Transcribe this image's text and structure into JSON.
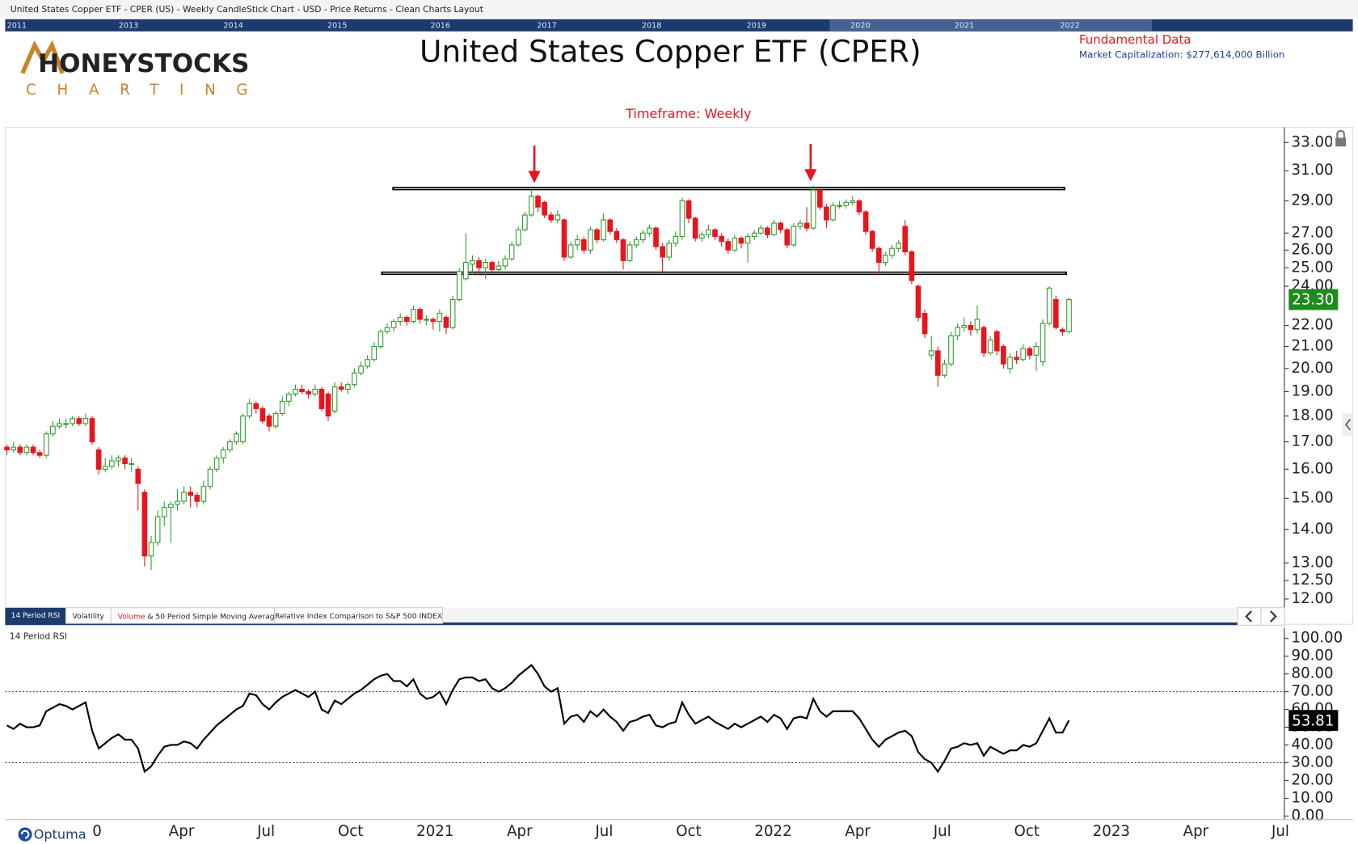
{
  "header": {
    "caption": "United States Copper ETF - CPER (US) - Weekly CandleStick Chart - USD - Price Returns - Clean Charts Layout",
    "years": [
      "2011",
      "2013",
      "2014",
      "2015",
      "2016",
      "2017",
      "2018",
      "2019",
      "2020",
      "2021",
      "2022"
    ]
  },
  "logo": {
    "line1": "HONEYSTOCKS",
    "line2": "CHARTING"
  },
  "fundamentals": {
    "title": "Fundamental Data",
    "market_cap": "Market Capitalization: $277,614,000 Billion"
  },
  "tabs": {
    "rsi": "14 Period RSI",
    "volatility": "Volatility",
    "volume": "Volume",
    "volume_rest": " & 50 Period Simple Moving Average",
    "relative": "Relative Index Comparison to S&P 500 INDEX"
  },
  "brand": "Optuma",
  "x_labels": [
    "0",
    "Apr",
    "Jul",
    "Oct",
    "2021",
    "Apr",
    "Jul",
    "Oct",
    "2022",
    "Apr",
    "Jul",
    "Oct",
    "2023",
    "Apr",
    "Jul"
  ],
  "chart_data": [
    {
      "type": "candlestick",
      "title": "United States Copper ETF (CPER)",
      "subtitle": "Timeframe: Weekly",
      "log_scale": true,
      "up_color": "#2e9a2e",
      "down_color": "#e8141e",
      "levels": [
        29.8,
        24.7
      ],
      "last_label": "23.30",
      "ylim": [
        11.39,
        34
      ],
      "yticks": [
        {
          "value": 12,
          "label": "12.00"
        },
        {
          "value": 12.5,
          "label": "12.50"
        },
        {
          "value": 13,
          "label": "13.00"
        },
        {
          "value": 14,
          "label": "14.00"
        },
        {
          "value": 15,
          "label": "15.00"
        },
        {
          "value": 16,
          "label": "16.00"
        },
        {
          "value": 17,
          "label": "17.00"
        },
        {
          "value": 18,
          "label": "18.00"
        },
        {
          "value": 19,
          "label": "19.00"
        },
        {
          "value": 20,
          "label": "20.00"
        },
        {
          "value": 21,
          "label": "21.00"
        },
        {
          "value": 22,
          "label": "22.00"
        },
        {
          "value": 24,
          "label": "24.00"
        },
        {
          "value": 25,
          "label": "25.00"
        },
        {
          "value": 26,
          "label": "26.00"
        },
        {
          "value": 27,
          "label": "27.00"
        },
        {
          "value": 29,
          "label": "29.00"
        },
        {
          "value": 31,
          "label": "31.00"
        },
        {
          "value": 33,
          "label": "33.00"
        }
      ],
      "candles": [
        [
          16.8,
          16.9,
          16.5,
          16.7
        ],
        [
          16.7,
          17.0,
          16.6,
          16.8
        ],
        [
          16.8,
          16.9,
          16.5,
          16.6
        ],
        [
          16.6,
          16.9,
          16.5,
          16.8
        ],
        [
          16.8,
          16.9,
          16.5,
          16.6
        ],
        [
          16.6,
          16.7,
          16.4,
          16.5
        ],
        [
          16.5,
          17.4,
          16.4,
          17.3
        ],
        [
          17.3,
          17.8,
          17.2,
          17.6
        ],
        [
          17.6,
          17.9,
          17.5,
          17.7
        ],
        [
          17.7,
          17.9,
          17.5,
          17.7
        ],
        [
          17.7,
          18.0,
          17.6,
          17.9
        ],
        [
          17.9,
          18.0,
          17.6,
          17.7
        ],
        [
          17.7,
          18.1,
          17.6,
          17.9
        ],
        [
          17.9,
          18.0,
          16.9,
          17.0
        ],
        [
          16.7,
          16.8,
          15.8,
          16.0
        ],
        [
          16.0,
          16.4,
          15.9,
          16.1
        ],
        [
          16.1,
          16.5,
          16.0,
          16.3
        ],
        [
          16.3,
          16.5,
          16.1,
          16.4
        ],
        [
          16.4,
          16.5,
          16.0,
          16.2
        ],
        [
          16.2,
          16.4,
          15.9,
          16.2
        ],
        [
          16.0,
          16.1,
          14.6,
          15.5
        ],
        [
          15.2,
          15.3,
          12.9,
          13.2
        ],
        [
          13.2,
          13.8,
          12.8,
          13.6
        ],
        [
          13.6,
          14.6,
          13.5,
          14.4
        ],
        [
          14.4,
          14.9,
          14.1,
          14.7
        ],
        [
          14.7,
          14.9,
          13.6,
          14.8
        ],
        [
          14.8,
          15.3,
          14.6,
          14.9
        ],
        [
          14.9,
          15.4,
          14.8,
          15.2
        ],
        [
          15.2,
          15.4,
          14.7,
          15.1
        ],
        [
          15.1,
          15.2,
          14.7,
          14.9
        ],
        [
          14.9,
          15.6,
          14.8,
          15.4
        ],
        [
          15.4,
          16.1,
          15.3,
          16.0
        ],
        [
          16.0,
          16.5,
          15.9,
          16.4
        ],
        [
          16.4,
          16.8,
          16.2,
          16.7
        ],
        [
          16.7,
          17.1,
          16.6,
          17.0
        ],
        [
          17.0,
          17.4,
          16.9,
          17.3
        ],
        [
          17.0,
          18.1,
          16.9,
          18.0
        ],
        [
          18.0,
          18.7,
          17.9,
          18.5
        ],
        [
          18.5,
          18.6,
          18.1,
          18.3
        ],
        [
          18.3,
          18.4,
          17.7,
          17.8
        ],
        [
          18.0,
          18.1,
          17.4,
          17.6
        ],
        [
          17.6,
          18.2,
          17.5,
          18.1
        ],
        [
          18.1,
          18.8,
          18.0,
          18.6
        ],
        [
          18.6,
          19.0,
          18.4,
          18.9
        ],
        [
          18.9,
          19.3,
          18.8,
          19.1
        ],
        [
          19.1,
          19.3,
          18.9,
          19.0
        ],
        [
          19.0,
          19.1,
          18.7,
          18.9
        ],
        [
          18.9,
          19.3,
          18.8,
          19.1
        ],
        [
          19.1,
          19.2,
          18.2,
          18.3
        ],
        [
          18.9,
          19.0,
          17.8,
          18.0
        ],
        [
          18.2,
          19.4,
          18.1,
          19.2
        ],
        [
          19.2,
          19.4,
          19.0,
          19.1
        ],
        [
          19.1,
          19.4,
          18.9,
          19.3
        ],
        [
          19.3,
          20.0,
          19.2,
          19.8
        ],
        [
          19.8,
          20.3,
          19.7,
          20.1
        ],
        [
          20.1,
          20.6,
          20.0,
          20.4
        ],
        [
          20.4,
          21.2,
          20.3,
          21.0
        ],
        [
          21.0,
          21.8,
          20.9,
          21.7
        ],
        [
          21.7,
          22.1,
          21.6,
          21.9
        ],
        [
          21.9,
          22.3,
          21.7,
          22.2
        ],
        [
          22.2,
          22.6,
          22.0,
          22.4
        ],
        [
          22.4,
          22.5,
          22.0,
          22.2
        ],
        [
          22.2,
          23.0,
          22.1,
          22.8
        ],
        [
          22.8,
          22.9,
          22.1,
          22.3
        ],
        [
          22.3,
          22.5,
          22.0,
          22.3
        ],
        [
          22.3,
          22.4,
          21.8,
          22.2
        ],
        [
          22.2,
          22.8,
          21.7,
          22.6
        ],
        [
          22.4,
          22.5,
          21.6,
          21.9
        ],
        [
          21.9,
          23.5,
          21.8,
          23.3
        ],
        [
          23.3,
          25.0,
          23.2,
          24.8
        ],
        [
          24.4,
          27.0,
          24.3,
          25.3
        ],
        [
          25.2,
          25.7,
          24.6,
          25.4
        ],
        [
          25.4,
          25.6,
          24.6,
          25.0
        ],
        [
          25.0,
          25.5,
          24.4,
          25.3
        ],
        [
          25.3,
          25.4,
          24.7,
          24.9
        ],
        [
          24.9,
          25.4,
          24.7,
          25.1
        ],
        [
          25.1,
          25.7,
          24.9,
          25.5
        ],
        [
          25.5,
          26.5,
          25.4,
          26.3
        ],
        [
          26.3,
          27.4,
          26.2,
          27.2
        ],
        [
          27.2,
          28.3,
          27.1,
          28.1
        ],
        [
          28.1,
          29.7,
          28.0,
          29.3
        ],
        [
          29.3,
          29.4,
          28.3,
          28.6
        ],
        [
          28.9,
          29.0,
          27.9,
          28.1
        ],
        [
          28.1,
          28.3,
          27.6,
          27.8
        ],
        [
          27.8,
          28.4,
          27.6,
          28.1
        ],
        [
          27.8,
          27.9,
          25.4,
          25.6
        ],
        [
          25.6,
          26.5,
          25.5,
          26.3
        ],
        [
          26.3,
          26.9,
          26.0,
          26.6
        ],
        [
          26.6,
          26.8,
          25.8,
          26.0
        ],
        [
          26.0,
          27.4,
          25.8,
          27.2
        ],
        [
          27.2,
          27.3,
          26.4,
          26.6
        ],
        [
          26.6,
          28.2,
          26.5,
          27.8
        ],
        [
          27.8,
          27.9,
          26.9,
          27.1
        ],
        [
          27.1,
          27.3,
          26.4,
          26.6
        ],
        [
          26.6,
          26.7,
          24.9,
          25.4
        ],
        [
          25.4,
          26.5,
          25.3,
          26.3
        ],
        [
          26.3,
          26.8,
          26.1,
          26.6
        ],
        [
          26.6,
          27.2,
          26.4,
          27.0
        ],
        [
          27.0,
          27.5,
          26.8,
          27.3
        ],
        [
          27.3,
          27.4,
          26.0,
          26.2
        ],
        [
          26.2,
          26.4,
          24.8,
          25.6
        ],
        [
          25.6,
          26.6,
          25.4,
          26.4
        ],
        [
          26.4,
          27.1,
          26.2,
          26.8
        ],
        [
          26.8,
          29.2,
          26.6,
          29.0
        ],
        [
          29.0,
          29.1,
          27.6,
          27.9
        ],
        [
          27.9,
          28.0,
          26.5,
          26.7
        ],
        [
          26.7,
          27.1,
          26.5,
          26.9
        ],
        [
          26.9,
          27.5,
          26.7,
          27.2
        ],
        [
          27.2,
          27.3,
          26.6,
          26.8
        ],
        [
          26.8,
          27.0,
          26.2,
          26.5
        ],
        [
          26.5,
          26.7,
          25.8,
          26.0
        ],
        [
          26.0,
          26.9,
          25.9,
          26.7
        ],
        [
          26.7,
          26.8,
          26.1,
          26.4
        ],
        [
          26.4,
          27.0,
          25.3,
          26.8
        ],
        [
          26.8,
          27.2,
          26.6,
          27.0
        ],
        [
          27.0,
          27.5,
          26.9,
          27.3
        ],
        [
          27.3,
          27.4,
          26.7,
          26.9
        ],
        [
          26.9,
          27.8,
          26.8,
          27.6
        ],
        [
          27.6,
          27.7,
          27.0,
          27.2
        ],
        [
          27.2,
          27.3,
          26.1,
          26.3
        ],
        [
          26.3,
          27.6,
          26.2,
          27.4
        ],
        [
          27.4,
          27.8,
          27.2,
          27.6
        ],
        [
          27.6,
          28.6,
          27.1,
          27.3
        ],
        [
          27.3,
          30.0,
          27.2,
          29.7
        ],
        [
          29.7,
          29.8,
          28.4,
          28.6
        ],
        [
          28.6,
          28.8,
          27.3,
          27.8
        ],
        [
          27.8,
          28.9,
          27.7,
          28.7
        ],
        [
          28.7,
          29.0,
          28.5,
          28.7
        ],
        [
          28.7,
          29.1,
          28.5,
          28.9
        ],
        [
          28.9,
          29.3,
          28.7,
          29.0
        ],
        [
          29.0,
          29.1,
          28.1,
          28.3
        ],
        [
          28.3,
          28.4,
          26.9,
          27.1
        ],
        [
          27.1,
          27.2,
          25.9,
          26.1
        ],
        [
          26.1,
          26.2,
          24.6,
          25.3
        ],
        [
          25.3,
          25.9,
          25.1,
          25.7
        ],
        [
          25.7,
          26.3,
          25.5,
          26.1
        ],
        [
          26.1,
          26.6,
          25.9,
          26.4
        ],
        [
          27.4,
          27.8,
          25.7,
          25.9
        ],
        [
          25.9,
          26.0,
          24.1,
          24.3
        ],
        [
          24.0,
          24.1,
          22.2,
          22.4
        ],
        [
          22.6,
          22.8,
          21.4,
          21.6
        ],
        [
          20.6,
          21.5,
          20.4,
          20.8
        ],
        [
          20.8,
          21.0,
          19.2,
          19.7
        ],
        [
          19.7,
          20.4,
          19.6,
          20.2
        ],
        [
          20.2,
          21.7,
          20.1,
          21.5
        ],
        [
          21.5,
          22.1,
          21.3,
          21.9
        ],
        [
          21.9,
          22.4,
          21.7,
          22.0
        ],
        [
          22.0,
          22.2,
          21.5,
          21.8
        ],
        [
          21.8,
          23.0,
          21.6,
          22.3
        ],
        [
          21.9,
          22.0,
          20.5,
          20.7
        ],
        [
          20.7,
          21.5,
          20.6,
          21.3
        ],
        [
          21.7,
          21.8,
          20.6,
          20.8
        ],
        [
          21.0,
          21.1,
          20.0,
          20.2
        ],
        [
          20.0,
          20.7,
          19.8,
          20.5
        ],
        [
          20.5,
          20.8,
          20.2,
          20.4
        ],
        [
          20.4,
          21.1,
          20.3,
          20.9
        ],
        [
          20.9,
          21.0,
          20.4,
          20.6
        ],
        [
          20.6,
          21.2,
          19.9,
          21.0
        ],
        [
          20.3,
          22.3,
          20.1,
          22.1
        ],
        [
          22.1,
          24.0,
          22.0,
          23.9
        ],
        [
          23.3,
          23.5,
          21.8,
          21.9
        ],
        [
          21.8,
          21.9,
          21.5,
          21.7
        ],
        [
          21.7,
          23.4,
          21.6,
          23.3
        ]
      ]
    },
    {
      "type": "line",
      "name": "14 Period RSI",
      "color": "#000000",
      "bands": [
        30,
        70
      ],
      "last_label": "53.81",
      "ylim": [
        -2,
        106
      ],
      "yticks": [
        {
          "value": 0,
          "label": "0.00"
        },
        {
          "value": 10,
          "label": "10.00"
        },
        {
          "value": 20,
          "label": "20.00"
        },
        {
          "value": 30,
          "label": "30.00"
        },
        {
          "value": 40,
          "label": "40.00"
        },
        {
          "value": 50,
          "label": "50.00"
        },
        {
          "value": 60,
          "label": "60.00"
        },
        {
          "value": 70,
          "label": "70.00"
        },
        {
          "value": 80,
          "label": "80.00"
        },
        {
          "value": 90,
          "label": "90.00"
        },
        {
          "value": 100,
          "label": "100.00"
        }
      ],
      "values": [
        51,
        49,
        52,
        50,
        50,
        51,
        59,
        61,
        63,
        62,
        60,
        62,
        64,
        48,
        38,
        41,
        44,
        46,
        43,
        43,
        38,
        25,
        28,
        34,
        39,
        40,
        40,
        42,
        41,
        38,
        43,
        47,
        51,
        54,
        57,
        60,
        62,
        69,
        68,
        63,
        60,
        64,
        67,
        69,
        71,
        69,
        67,
        70,
        60,
        58,
        65,
        63,
        66,
        69,
        71,
        74,
        77,
        79,
        80,
        76,
        76,
        73,
        77,
        69,
        66,
        67,
        70,
        63,
        71,
        77,
        78,
        78,
        76,
        77,
        72,
        70,
        72,
        75,
        79,
        82,
        85,
        80,
        73,
        70,
        72,
        52,
        56,
        57,
        53,
        59,
        56,
        60,
        56,
        53,
        48,
        53,
        54,
        56,
        57,
        51,
        50,
        52,
        53,
        64,
        57,
        52,
        54,
        56,
        53,
        51,
        49,
        52,
        50,
        52,
        54,
        56,
        53,
        57,
        55,
        49,
        55,
        56,
        55,
        66,
        59,
        56,
        59,
        59,
        59,
        59,
        55,
        49,
        43,
        39,
        43,
        45,
        47,
        48,
        45,
        36,
        32,
        30,
        25,
        31,
        38,
        39,
        41,
        40,
        41,
        34,
        39,
        37,
        35,
        37,
        37,
        40,
        39,
        41,
        48,
        55,
        47,
        47,
        53.81
      ]
    }
  ]
}
